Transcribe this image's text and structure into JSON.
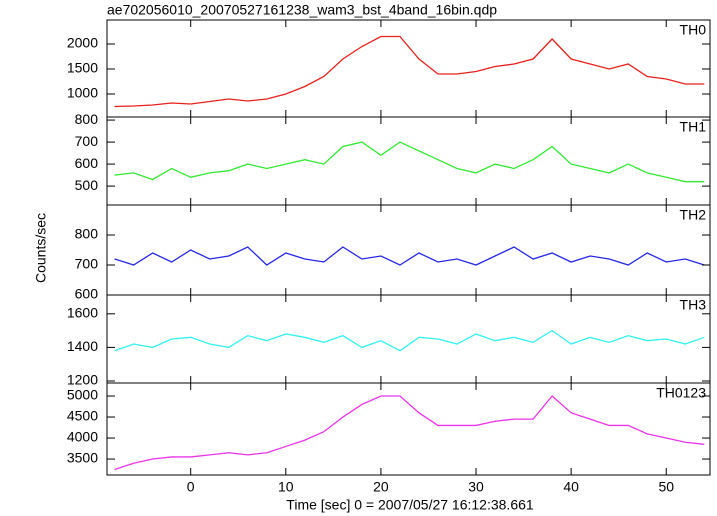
{
  "title": "ae702056010_20070527161238_wam3_bst_4band_16bin.qdp",
  "ylabel": "Counts/sec",
  "xlabel": "Time [sec] 0 = 2007/05/27 16:12:38.661",
  "chart_data": [
    {
      "type": "line",
      "label": "TH0",
      "color": "#e8201c",
      "x": [
        -8,
        -6,
        -4,
        -2,
        0,
        2,
        4,
        6,
        8,
        10,
        12,
        14,
        16,
        18,
        20,
        22,
        24,
        26,
        28,
        30,
        32,
        34,
        36,
        38,
        40,
        42,
        44,
        46,
        48,
        50,
        52,
        54
      ],
      "values": [
        750,
        760,
        780,
        820,
        800,
        850,
        900,
        860,
        900,
        1000,
        1150,
        1350,
        1700,
        1950,
        2150,
        2150,
        1700,
        1400,
        1400,
        1450,
        1550,
        1600,
        1700,
        2100,
        1700,
        1600,
        1500,
        1600,
        1350,
        1300,
        1200,
        1200
      ],
      "xlim": [
        -8.8,
        54.6
      ],
      "xticks": [
        0,
        10,
        20,
        30,
        40,
        50
      ],
      "ylim": [
        540,
        2480
      ],
      "yticks": [
        1000,
        1500,
        2000
      ]
    },
    {
      "type": "line",
      "label": "TH1",
      "color": "#33e833",
      "x": [
        -8,
        -6,
        -4,
        -2,
        0,
        2,
        4,
        6,
        8,
        10,
        12,
        14,
        16,
        18,
        20,
        22,
        24,
        26,
        28,
        30,
        32,
        34,
        36,
        38,
        40,
        42,
        44,
        46,
        48,
        50,
        52,
        54
      ],
      "values": [
        550,
        560,
        530,
        580,
        540,
        560,
        570,
        600,
        580,
        600,
        620,
        600,
        680,
        700,
        640,
        700,
        660,
        620,
        580,
        560,
        600,
        580,
        620,
        680,
        600,
        580,
        560,
        600,
        560,
        540,
        520,
        520
      ],
      "xlim": [
        -8.8,
        54.6
      ],
      "xticks": [
        0,
        10,
        20,
        30,
        40,
        50
      ],
      "ylim": [
        414,
        814
      ],
      "yticks": [
        500,
        600,
        700,
        800
      ]
    },
    {
      "type": "line",
      "label": "TH2",
      "color": "#2626e8",
      "x": [
        -8,
        -6,
        -4,
        -2,
        0,
        2,
        4,
        6,
        8,
        10,
        12,
        14,
        16,
        18,
        20,
        22,
        24,
        26,
        28,
        30,
        32,
        34,
        36,
        38,
        40,
        42,
        44,
        46,
        48,
        50,
        52,
        54
      ],
      "values": [
        720,
        700,
        740,
        710,
        750,
        720,
        730,
        760,
        700,
        740,
        720,
        710,
        760,
        720,
        730,
        700,
        740,
        710,
        720,
        700,
        730,
        760,
        720,
        740,
        710,
        730,
        720,
        700,
        740,
        710,
        720,
        700
      ],
      "xlim": [
        -8.8,
        54.6
      ],
      "xticks": [
        0,
        10,
        20,
        30,
        40,
        50
      ],
      "ylim": [
        600,
        900
      ],
      "yticks": [
        600,
        700,
        800
      ]
    },
    {
      "type": "line",
      "label": "TH3",
      "color": "#33f0f0",
      "x": [
        -8,
        -6,
        -4,
        -2,
        0,
        2,
        4,
        6,
        8,
        10,
        12,
        14,
        16,
        18,
        20,
        22,
        24,
        26,
        28,
        30,
        32,
        34,
        36,
        38,
        40,
        42,
        44,
        46,
        48,
        50,
        52,
        54
      ],
      "values": [
        1380,
        1420,
        1400,
        1450,
        1460,
        1420,
        1400,
        1470,
        1440,
        1480,
        1460,
        1430,
        1470,
        1400,
        1440,
        1380,
        1460,
        1450,
        1420,
        1480,
        1440,
        1460,
        1430,
        1500,
        1420,
        1460,
        1430,
        1470,
        1440,
        1450,
        1420,
        1460
      ],
      "xlim": [
        -8.8,
        54.6
      ],
      "xticks": [
        0,
        10,
        20,
        30,
        40,
        50
      ],
      "ylim": [
        1188,
        1712
      ],
      "yticks": [
        1200,
        1400,
        1600
      ]
    },
    {
      "type": "line",
      "label": "TH0123",
      "color": "#ea33ea",
      "x": [
        -8,
        -6,
        -4,
        -2,
        0,
        2,
        4,
        6,
        8,
        10,
        12,
        14,
        16,
        18,
        20,
        22,
        24,
        26,
        28,
        30,
        32,
        34,
        36,
        38,
        40,
        42,
        44,
        46,
        48,
        50,
        52,
        54
      ],
      "values": [
        3250,
        3400,
        3500,
        3550,
        3550,
        3600,
        3650,
        3600,
        3650,
        3800,
        3950,
        4150,
        4500,
        4800,
        5000,
        5000,
        4600,
        4300,
        4300,
        4300,
        4400,
        4450,
        4450,
        5000,
        4600,
        4450,
        4300,
        4300,
        4100,
        4000,
        3900,
        3850
      ],
      "xlim": [
        -8.8,
        54.6
      ],
      "xticks": [
        0,
        10,
        20,
        30,
        40,
        50
      ],
      "ylim": [
        3120,
        5310
      ],
      "yticks": [
        3500,
        4000,
        4500,
        5000
      ]
    }
  ]
}
